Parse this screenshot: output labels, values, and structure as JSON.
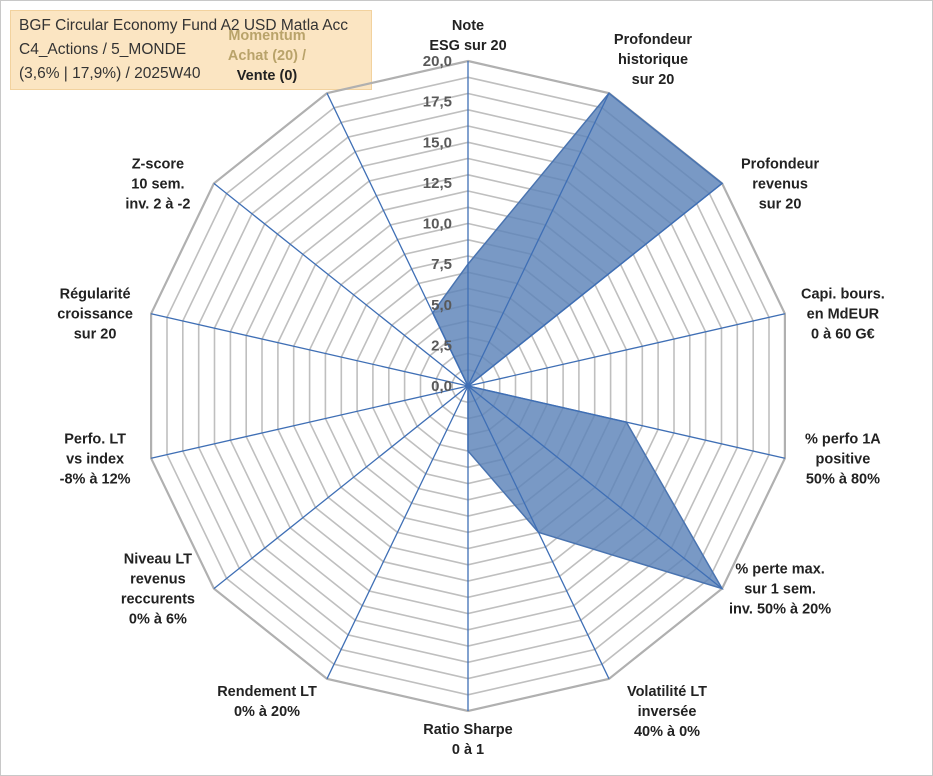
{
  "info": {
    "line1": "BGF Circular Economy Fund A2 USD Matla Acc",
    "line2": "C4_Actions / 5_MONDE",
    "line3": "(3,6% | 17,9%) / 2025W40"
  },
  "chart_data": {
    "type": "radar",
    "rmax": 20,
    "ticks": [
      "0,0",
      "2,5",
      "5,0",
      "7,5",
      "10,0",
      "12,5",
      "15,0",
      "17,5",
      "20,0"
    ],
    "axes": [
      {
        "label": [
          "Note",
          "ESG sur 20"
        ],
        "value": 7.5
      },
      {
        "label": [
          "Profondeur",
          "historique",
          "sur 20"
        ],
        "value": 20
      },
      {
        "label": [
          "Profondeur",
          "revenus",
          "sur 20"
        ],
        "value": 20
      },
      {
        "label": [
          "Capi. bours.",
          "en MdEUR",
          "0 à 60 G€"
        ],
        "value": 0
      },
      {
        "label": [
          "% perfo 1A",
          "positive",
          "50% à 80%"
        ],
        "value": 10
      },
      {
        "label": [
          "% perte max.",
          "sur 1 sem.",
          "inv. 50% à 20%"
        ],
        "value": 20
      },
      {
        "label": [
          "Volatilité LT",
          "inversée",
          "40% à 0%"
        ],
        "value": 10
      },
      {
        "label": [
          "Ratio Sharpe",
          "0 à 1"
        ],
        "value": 4
      },
      {
        "label": [
          "Rendement LT",
          "0% à 20%"
        ],
        "value": 0
      },
      {
        "label": [
          "Niveau LT",
          "revenus",
          "reccurents",
          "0% à 6%"
        ],
        "value": 0
      },
      {
        "label": [
          "Perfo. LT",
          "vs index",
          "-8% à 12%"
        ],
        "value": 0
      },
      {
        "label": [
          "Régularité",
          "croissance",
          "sur 20"
        ],
        "value": 0
      },
      {
        "label": [
          "Z-score",
          "10 sem.",
          "inv. 2 à -2"
        ],
        "value": 0
      },
      {
        "label": [
          "Momentum",
          "Achat (20) /",
          "Vente (0)"
        ],
        "value": 5,
        "muted_lines": 2
      }
    ]
  }
}
